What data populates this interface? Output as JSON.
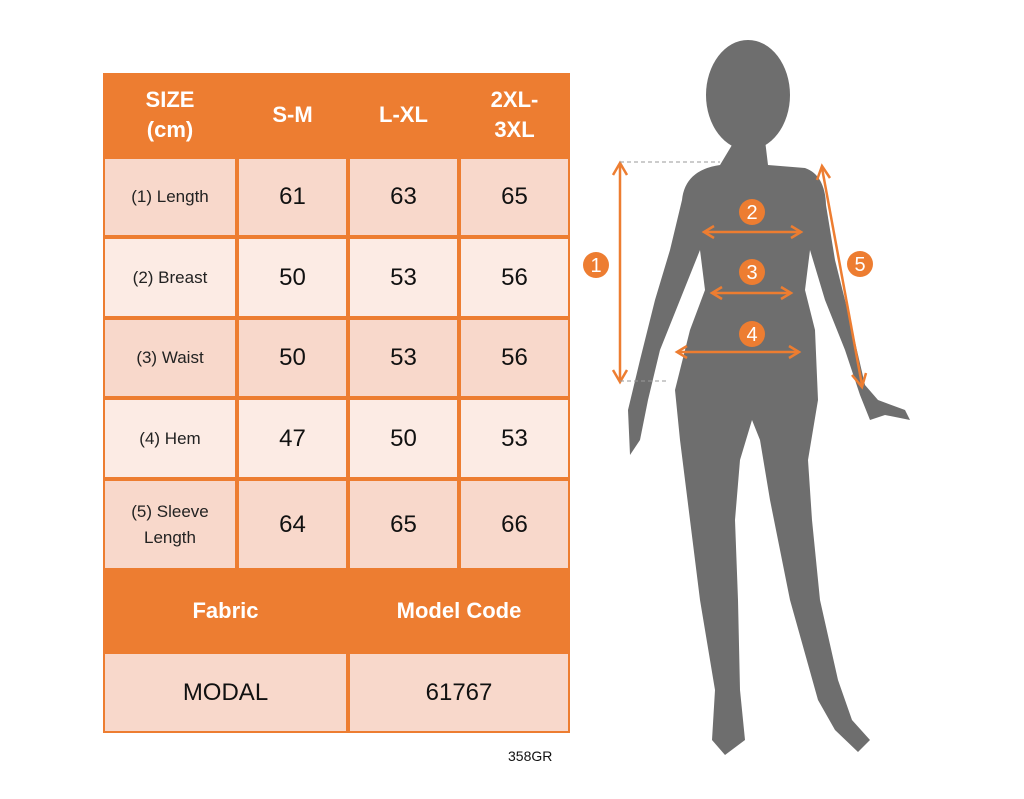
{
  "table": {
    "header": [
      "SIZE\n(cm)",
      "S-M",
      "L-XL",
      "2XL-\n3XL"
    ],
    "rows": [
      {
        "label": "(1) Length",
        "values": [
          "61",
          "63",
          "65"
        ]
      },
      {
        "label": "(2) Breast",
        "values": [
          "50",
          "53",
          "56"
        ]
      },
      {
        "label": "(3) Waist",
        "values": [
          "50",
          "53",
          "56"
        ]
      },
      {
        "label": "(4) Hem",
        "values": [
          "47",
          "50",
          "53"
        ]
      },
      {
        "label": "(5) Sleeve\nLength",
        "values": [
          "64",
          "65",
          "66"
        ]
      }
    ],
    "footer_headers": [
      "Fabric",
      "Model Code"
    ],
    "footer_values": [
      "MODAL",
      "61767"
    ]
  },
  "product_code": "358GR",
  "figure": {
    "markers": [
      "1",
      "2",
      "3",
      "4",
      "5"
    ]
  },
  "colors": {
    "accent": "#ED7D31",
    "cell_dark": "#F8D8CB",
    "cell_light": "#FCEBE4",
    "silhouette": "#6E6E6E"
  }
}
